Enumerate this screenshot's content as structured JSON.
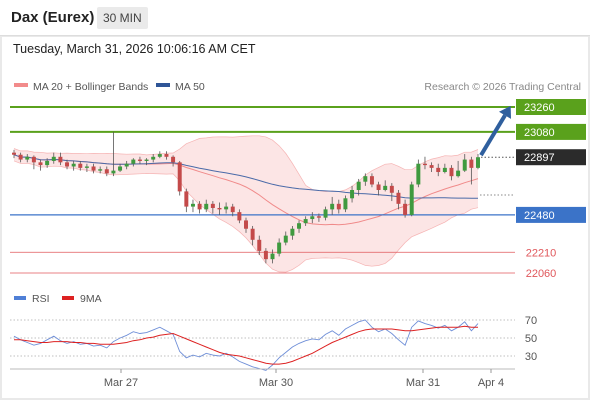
{
  "header": {
    "instrument": "Dax (Eurex)",
    "timeframe": "30 MIN"
  },
  "datetime": "Tuesday, March 31, 2026 10:06:16 AM CET",
  "legend": {
    "bollinger": "MA 20 + Bollinger Bands",
    "ma50": "MA 50",
    "credit": "Research © 2026 Trading Central",
    "rsi": "RSI",
    "rsi_ma": "9MA"
  },
  "colors": {
    "green": "#5aa11c",
    "blue": "#3b73c8",
    "red": "#e0575b",
    "bollinger_fill": "#fbdcdc",
    "bollinger_line": "#f08a8a",
    "ma50": "#4a6aa8",
    "candle_up": "#3f9a3f",
    "candle_down": "#c44a4a",
    "arrow": "#2f5f9e",
    "rsi_line": "#6f8fd8",
    "rsi_ma": "#d22"
  },
  "chart_data": {
    "type": "candlestick",
    "y_range": [
      22000,
      23320
    ],
    "current_price": 22897,
    "levels": [
      {
        "label": "23260",
        "value": 23260,
        "kind": "resistance"
      },
      {
        "label": "23080",
        "value": 23080,
        "kind": "resistance"
      },
      {
        "label": "22480",
        "value": 22480,
        "kind": "pivot"
      },
      {
        "label": "22210",
        "value": 22210,
        "kind": "support"
      },
      {
        "label": "22060",
        "value": 22060,
        "kind": "support"
      }
    ],
    "current_label": "22897",
    "x_ticks": [
      "Mar 27",
      "Mar 30",
      "Mar 31",
      "Apr 4"
    ],
    "rsi_ticks": [
      "70",
      "50",
      "30"
    ],
    "candles": [
      [
        22930,
        22915,
        22950,
        22890
      ],
      [
        22915,
        22880,
        22930,
        22860
      ],
      [
        22880,
        22900,
        22920,
        22860
      ],
      [
        22900,
        22860,
        22910,
        22810
      ],
      [
        22860,
        22840,
        22880,
        22800
      ],
      [
        22840,
        22870,
        22890,
        22820
      ],
      [
        22870,
        22900,
        22930,
        22850
      ],
      [
        22900,
        22860,
        22930,
        22840
      ],
      [
        22860,
        22830,
        22880,
        22810
      ],
      [
        22830,
        22850,
        22870,
        22800
      ],
      [
        22850,
        22820,
        22870,
        22800
      ],
      [
        22820,
        22830,
        22850,
        22790
      ],
      [
        22830,
        22800,
        22850,
        22780
      ],
      [
        22800,
        22810,
        22830,
        22780
      ],
      [
        22810,
        22780,
        22830,
        22760
      ],
      [
        22780,
        22800,
        23080,
        22760
      ],
      [
        22800,
        22830,
        22850,
        22790
      ],
      [
        22830,
        22850,
        22870,
        22810
      ],
      [
        22850,
        22880,
        22890,
        22830
      ],
      [
        22880,
        22870,
        22900,
        22850
      ],
      [
        22870,
        22880,
        22890,
        22840
      ],
      [
        22880,
        22900,
        22920,
        22860
      ],
      [
        22900,
        22920,
        22940,
        22890
      ],
      [
        22920,
        22900,
        22940,
        22880
      ],
      [
        22900,
        22860,
        22910,
        22830
      ],
      [
        22860,
        22650,
        22870,
        22620
      ],
      [
        22650,
        22540,
        22670,
        22500
      ],
      [
        22540,
        22560,
        22590,
        22500
      ],
      [
        22560,
        22520,
        22580,
        22490
      ],
      [
        22520,
        22560,
        22590,
        22500
      ],
      [
        22560,
        22530,
        22580,
        22490
      ],
      [
        22530,
        22520,
        22570,
        22480
      ],
      [
        22520,
        22540,
        22570,
        22490
      ],
      [
        22540,
        22500,
        22560,
        22470
      ],
      [
        22500,
        22440,
        22520,
        22420
      ],
      [
        22440,
        22380,
        22460,
        22350
      ],
      [
        22380,
        22300,
        22400,
        22260
      ],
      [
        22300,
        22220,
        22330,
        22190
      ],
      [
        22220,
        22160,
        22240,
        22130
      ],
      [
        22160,
        22200,
        22230,
        22130
      ],
      [
        22200,
        22280,
        22310,
        22180
      ],
      [
        22280,
        22330,
        22360,
        22260
      ],
      [
        22330,
        22380,
        22400,
        22300
      ],
      [
        22380,
        22420,
        22440,
        22350
      ],
      [
        22420,
        22450,
        22470,
        22400
      ],
      [
        22450,
        22470,
        22500,
        22420
      ],
      [
        22470,
        22460,
        22490,
        22430
      ],
      [
        22460,
        22520,
        22540,
        22440
      ],
      [
        22520,
        22560,
        22610,
        22480
      ],
      [
        22560,
        22520,
        22590,
        22490
      ],
      [
        22520,
        22600,
        22620,
        22500
      ],
      [
        22600,
        22660,
        22690,
        22570
      ],
      [
        22660,
        22720,
        22740,
        22620
      ],
      [
        22720,
        22760,
        22780,
        22690
      ],
      [
        22760,
        22700,
        22780,
        22680
      ],
      [
        22700,
        22660,
        22720,
        22620
      ],
      [
        22660,
        22690,
        22730,
        22650
      ],
      [
        22690,
        22640,
        22710,
        22580
      ],
      [
        22640,
        22560,
        22660,
        22520
      ],
      [
        22560,
        22480,
        22590,
        22460
      ],
      [
        22480,
        22700,
        22720,
        22470
      ],
      [
        22700,
        22850,
        22880,
        22680
      ],
      [
        22850,
        22840,
        22900,
        22810
      ],
      [
        22840,
        22820,
        22860,
        22790
      ],
      [
        22820,
        22790,
        22850,
        22760
      ],
      [
        22790,
        22820,
        22850,
        22780
      ],
      [
        22820,
        22760,
        22840,
        22730
      ],
      [
        22760,
        22800,
        22870,
        22750
      ],
      [
        22800,
        22880,
        22920,
        22790
      ],
      [
        22880,
        22820,
        22900,
        22700
      ],
      [
        22820,
        22897,
        22920,
        22810
      ]
    ],
    "rsi": [
      52,
      48,
      45,
      42,
      44,
      48,
      52,
      47,
      44,
      46,
      43,
      44,
      41,
      42,
      39,
      46,
      50,
      53,
      57,
      55,
      56,
      59,
      62,
      58,
      54,
      35,
      28,
      31,
      29,
      33,
      31,
      30,
      33,
      29,
      24,
      21,
      18,
      16,
      14,
      20,
      28,
      34,
      40,
      44,
      47,
      49,
      48,
      54,
      58,
      53,
      60,
      64,
      68,
      70,
      62,
      57,
      60,
      55,
      48,
      42,
      62,
      69,
      66,
      64,
      61,
      64,
      58,
      62,
      68,
      58,
      66
    ],
    "rsi_ma": [
      48,
      48,
      47,
      46,
      45,
      45,
      46,
      46,
      46,
      45,
      45,
      44,
      44,
      43,
      43,
      43,
      44,
      45,
      47,
      48,
      50,
      51,
      53,
      54,
      55,
      52,
      49,
      46,
      43,
      40,
      37,
      34,
      32,
      31,
      30,
      28,
      26,
      24,
      22,
      21,
      21,
      22,
      24,
      27,
      30,
      33,
      37,
      41,
      45,
      48,
      51,
      54,
      57,
      59,
      60,
      60,
      60,
      60,
      59,
      58,
      58,
      59,
      60,
      61,
      62,
      62,
      62,
      62,
      63,
      62,
      62
    ]
  }
}
